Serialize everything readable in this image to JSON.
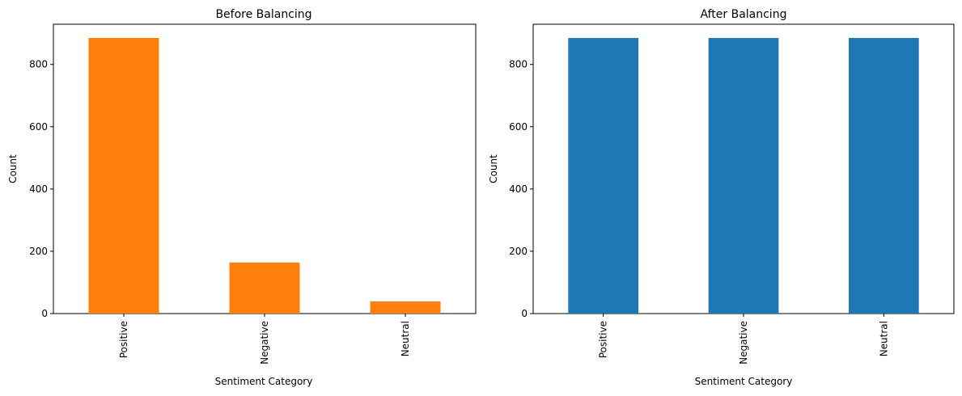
{
  "chart_data": [
    {
      "type": "bar",
      "title": "Before Balancing",
      "xlabel": "Sentiment Category",
      "ylabel": "Count",
      "categories": [
        "Positive",
        "Negative",
        "Neutral"
      ],
      "values": [
        885,
        164,
        39
      ],
      "ylim": [
        0,
        929
      ],
      "yticks": [
        0,
        200,
        400,
        600,
        800
      ],
      "bar_color": "#ff7f0e",
      "grid": false,
      "legend": "none"
    },
    {
      "type": "bar",
      "title": "After Balancing",
      "xlabel": "Sentiment Category",
      "ylabel": "Count",
      "categories": [
        "Positive",
        "Negative",
        "Neutral"
      ],
      "values": [
        885,
        885,
        885
      ],
      "ylim": [
        0,
        929
      ],
      "yticks": [
        0,
        200,
        400,
        600,
        800
      ],
      "bar_color": "#1f77b4",
      "grid": false,
      "legend": "none"
    }
  ]
}
